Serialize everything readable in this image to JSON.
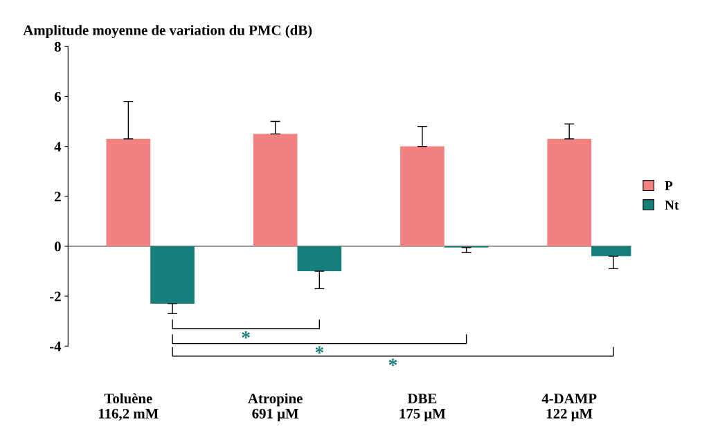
{
  "chart_data": {
    "type": "bar",
    "title": "Amplitude moyenne de variation du PMC (dB)",
    "categories": [
      "Toluène\n116,2 mM",
      "Atropine\n691 μM",
      "DBE\n175 μM",
      "4-DAMP\n122 μM"
    ],
    "series": [
      {
        "name": "P",
        "color": "#f28282",
        "values": [
          4.3,
          4.5,
          4.0,
          4.3
        ],
        "errors": [
          [
            4.3,
            5.8
          ],
          [
            4.5,
            5.0
          ],
          [
            4.0,
            4.8
          ],
          [
            4.3,
            4.9
          ]
        ]
      },
      {
        "name": "Nt",
        "color": "#177f7b",
        "values": [
          -2.3,
          -1.0,
          -0.05,
          -0.4
        ],
        "errors": [
          [
            -2.7,
            -2.3
          ],
          [
            -1.7,
            -1.0
          ],
          [
            -0.25,
            -0.05
          ],
          [
            -0.9,
            -0.4
          ]
        ]
      }
    ],
    "ylim": [
      -4,
      8
    ],
    "yticks": [
      -4,
      -2,
      0,
      2,
      4,
      6,
      8
    ],
    "legend": "right",
    "annotations": [
      "*",
      "*",
      "*"
    ]
  }
}
